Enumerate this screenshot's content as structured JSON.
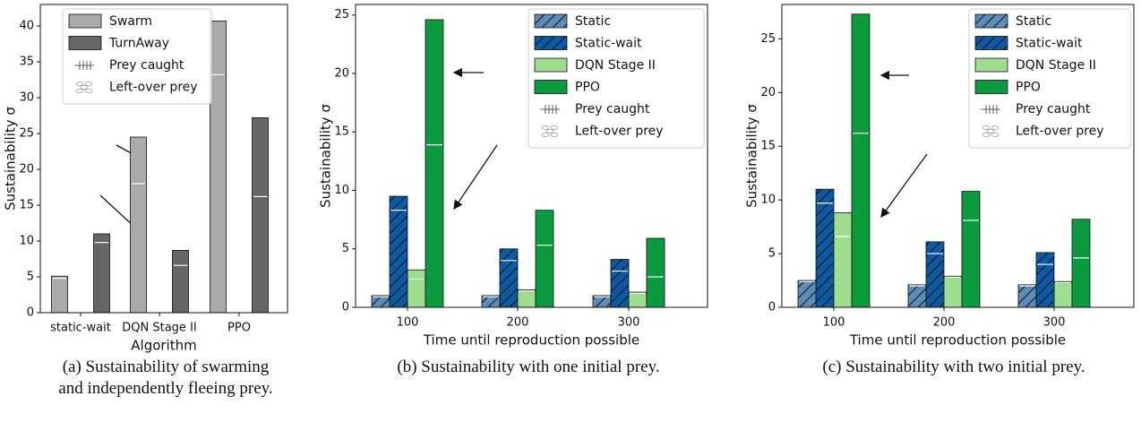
{
  "chart_data": [
    {
      "type": "bar",
      "caption": "(a) Sustainability of swarming and independently fleeing prey.",
      "ylabel": "Sustainability σ",
      "xlabel": "Algorithm",
      "categories": [
        "static-wait",
        "DQN Stage II",
        "PPO"
      ],
      "segment_names": [
        "Prey caught",
        "Left-over prey"
      ],
      "series": [
        {
          "name": "Swarm",
          "color": "#aaaaaa",
          "hatch": false,
          "values": [
            4.8,
            18,
            33.2
          ],
          "left_over": [
            0.3,
            6.5,
            7.5
          ]
        },
        {
          "name": "TurnAway",
          "color": "#666666",
          "hatch": false,
          "values": [
            9.8,
            6.6,
            16.2
          ],
          "left_over": [
            1.2,
            2.1,
            11
          ]
        }
      ],
      "ylim": [
        0,
        43
      ],
      "yticks": [
        0,
        5,
        10,
        15,
        20,
        25,
        30,
        35,
        40
      ],
      "legend": "upper left"
    },
    {
      "type": "bar",
      "caption": "(b) Sustainability with one initial prey.",
      "ylabel": "Sustainability σ",
      "xlabel": "Time until reproduction possible",
      "categories": [
        "100",
        "200",
        "300"
      ],
      "segment_names": [
        "Prey caught",
        "Left-over prey"
      ],
      "series": [
        {
          "name": "Static",
          "color": "#5b8db8",
          "hatch": true,
          "values": [
            0.9,
            0.9,
            0.9
          ],
          "left_over": [
            0.1,
            0.1,
            0.1
          ]
        },
        {
          "name": "Static-wait",
          "color": "#0b5aa3",
          "hatch": true,
          "values": [
            8.3,
            4,
            3.1
          ],
          "left_over": [
            1.2,
            1,
            1
          ]
        },
        {
          "name": "DQN Stage II",
          "color": "#9edc8e",
          "hatch": false,
          "values": [
            2.4,
            1.4,
            1.2
          ],
          "left_over": [
            0.8,
            0.1,
            0.1
          ]
        },
        {
          "name": "PPO",
          "color": "#0c9a3e",
          "hatch": false,
          "values": [
            13.9,
            5.3,
            2.6
          ],
          "left_over": [
            10.7,
            3,
            3.3
          ]
        }
      ],
      "ylim": [
        0,
        25.9
      ],
      "yticks": [
        0,
        5,
        10,
        15,
        20,
        25
      ],
      "legend": "upper right"
    },
    {
      "type": "bar",
      "caption": "(c) Sustainability with two initial prey.",
      "ylabel": "Sustainability σ",
      "xlabel": "Time until reproduction possible",
      "categories": [
        "100",
        "200",
        "300"
      ],
      "segment_names": [
        "Prey caught",
        "Left-over prey"
      ],
      "series": [
        {
          "name": "Static",
          "color": "#5b8db8",
          "hatch": true,
          "values": [
            2.4,
            2,
            2
          ],
          "left_over": [
            0.1,
            0.1,
            0.1
          ]
        },
        {
          "name": "Static-wait",
          "color": "#0b5aa3",
          "hatch": true,
          "values": [
            9.7,
            5,
            4
          ],
          "left_over": [
            1.3,
            1.1,
            1.1
          ]
        },
        {
          "name": "DQN Stage II",
          "color": "#9edc8e",
          "hatch": false,
          "values": [
            6.6,
            2.8,
            2.3
          ],
          "left_over": [
            2.2,
            0.1,
            0.1
          ]
        },
        {
          "name": "PPO",
          "color": "#0c9a3e",
          "hatch": false,
          "values": [
            16.2,
            8.1,
            4.6
          ],
          "left_over": [
            11.1,
            2.7,
            3.6
          ]
        }
      ],
      "ylim": [
        0,
        28.2
      ],
      "yticks": [
        0,
        5,
        10,
        15,
        20,
        25
      ],
      "legend": "upper right"
    }
  ]
}
